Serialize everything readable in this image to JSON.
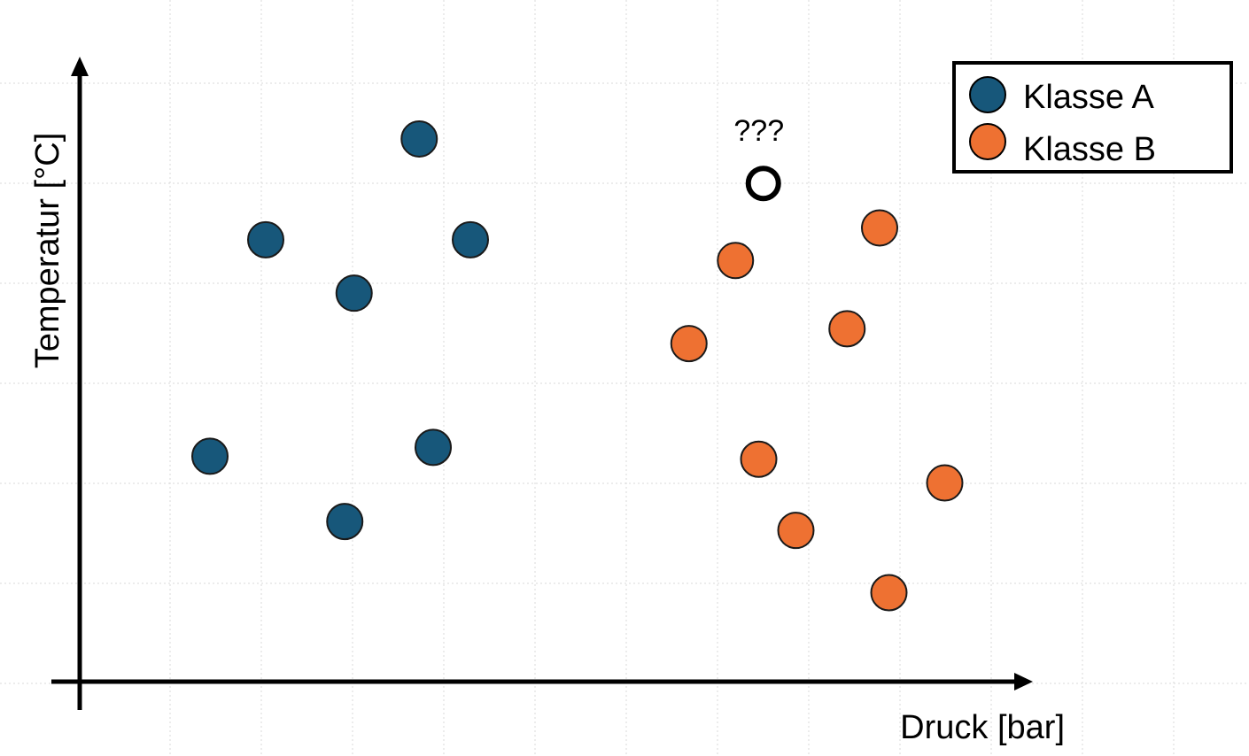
{
  "chart_data": {
    "type": "scatter",
    "title": "",
    "xlabel": "Druck [bar]",
    "ylabel": "Temperatur [°C]",
    "grid": true,
    "legend_position": "top-right",
    "tick_labels": false,
    "xlim": [
      0,
      100
    ],
    "ylim": [
      0,
      100
    ],
    "series": [
      {
        "name": "Klasse A",
        "color": "#17577a",
        "points": [
          {
            "x": 36.5,
            "y": 91.5
          },
          {
            "x": 20.0,
            "y": 74.5
          },
          {
            "x": 42.0,
            "y": 74.5
          },
          {
            "x": 29.5,
            "y": 65.5
          },
          {
            "x": 38.0,
            "y": 39.5
          },
          {
            "x": 14.0,
            "y": 38.0
          },
          {
            "x": 28.5,
            "y": 27.0
          }
        ]
      },
      {
        "name": "Klasse B",
        "color": "#ee7132",
        "points": [
          {
            "x": 86.0,
            "y": 76.5
          },
          {
            "x": 70.5,
            "y": 71.0
          },
          {
            "x": 82.5,
            "y": 59.5
          },
          {
            "x": 65.5,
            "y": 57.0
          },
          {
            "x": 73.0,
            "y": 37.5
          },
          {
            "x": 93.0,
            "y": 33.5
          },
          {
            "x": 77.0,
            "y": 25.5
          },
          {
            "x": 87.0,
            "y": 15.0
          }
        ]
      }
    ],
    "annotations": [
      {
        "label": "???",
        "x": 73.5,
        "y": 84.0,
        "marker": "hollow-circle"
      }
    ]
  }
}
